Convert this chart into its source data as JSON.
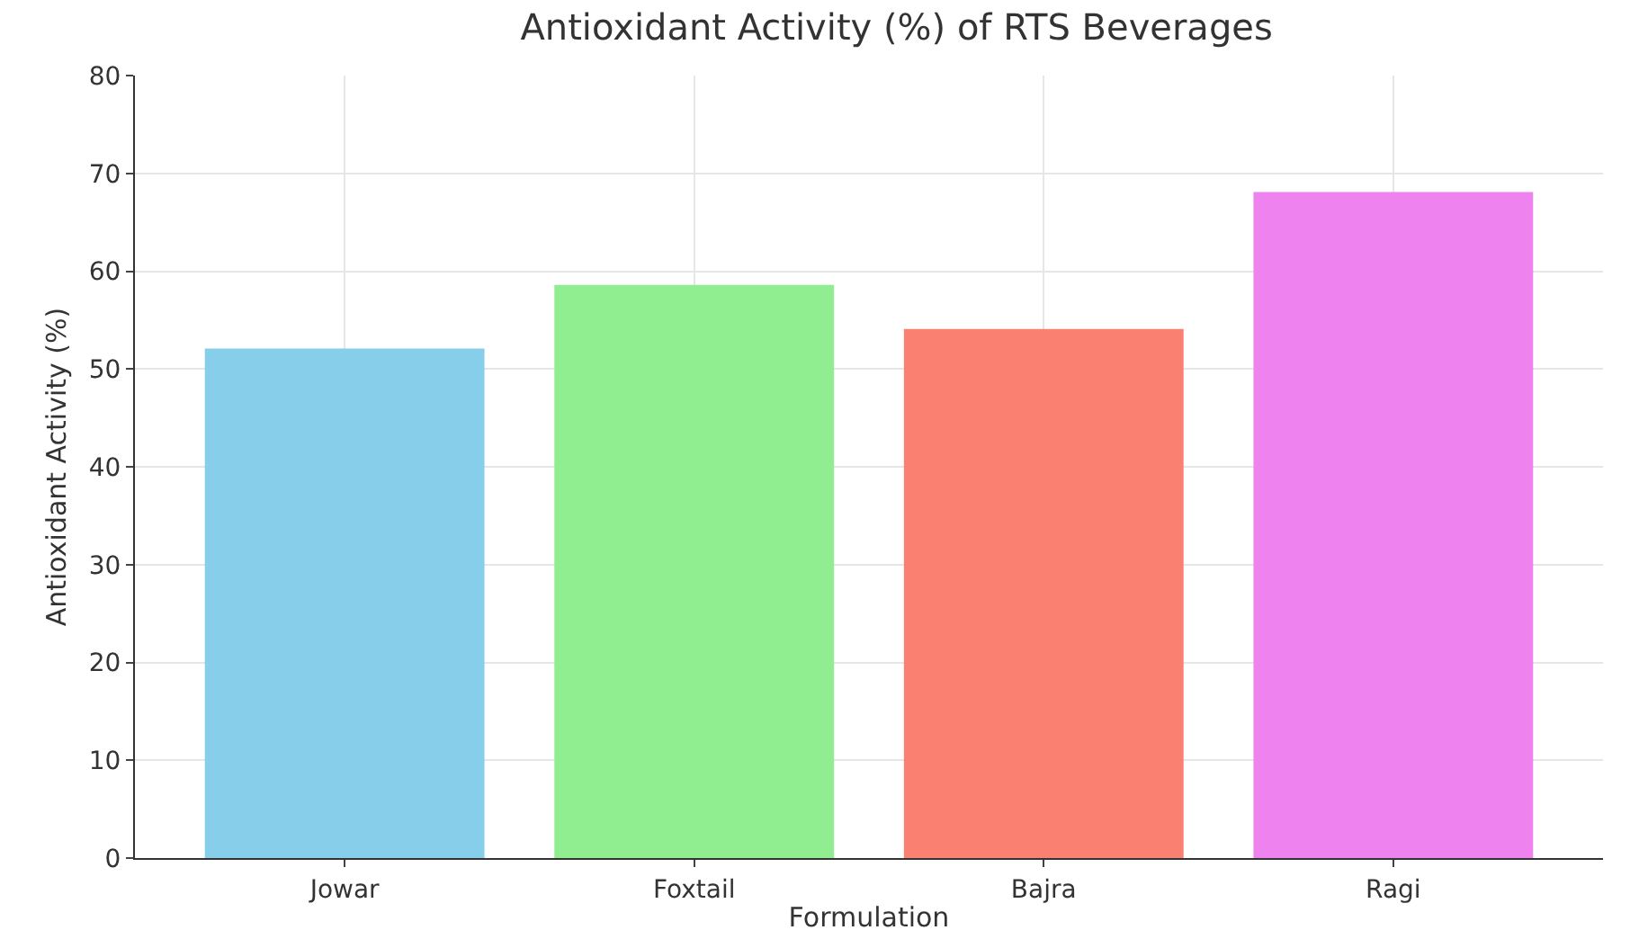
{
  "chart_data": {
    "type": "bar",
    "title": "Antioxidant Activity (%) of RTS Beverages",
    "xlabel": "Formulation",
    "ylabel": "Antioxidant Activity (%)",
    "categories": [
      "Jowar",
      "Foxtail",
      "Bajra",
      "Ragi"
    ],
    "values": [
      52.1,
      58.6,
      54.1,
      68.1
    ],
    "colors": [
      "#87ceeb",
      "#90ee90",
      "#fa8072",
      "#ee82ee"
    ],
    "ylim": [
      0,
      80
    ],
    "yticks": [
      0,
      10,
      20,
      30,
      40,
      50,
      60,
      70,
      80
    ],
    "grid": true
  }
}
